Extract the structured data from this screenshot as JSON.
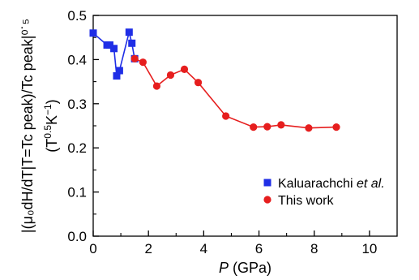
{
  "chart_data": {
    "type": "scatter",
    "title": "",
    "xlabel": {
      "var": "P",
      "unit": " (GPa)"
    },
    "ylabel": {
      "line1": "|(μ₀dH/dT|T=Tc peak)/Tc peak|⁰˙⁵",
      "line2_parts": [
        "(T",
        "0.5",
        "K",
        "−1",
        ")"
      ]
    },
    "xlim": [
      0,
      11
    ],
    "ylim": [
      0,
      0.5
    ],
    "xticks": [
      0,
      2,
      4,
      6,
      8,
      10
    ],
    "yticks": [
      0.0,
      0.1,
      0.2,
      0.3,
      0.4,
      0.5
    ],
    "grid": false,
    "legend_position": "bottom-right",
    "series": [
      {
        "name": {
          "prefix": "Kaluarachchi ",
          "italic": "et al."
        },
        "marker": "square",
        "color": "#1f2ee6",
        "x": [
          0.0,
          0.5,
          0.6,
          0.75,
          0.85,
          0.95,
          1.3,
          1.4,
          1.5
        ],
        "y": [
          0.46,
          0.433,
          0.433,
          0.425,
          0.363,
          0.375,
          0.462,
          0.437,
          0.402
        ]
      },
      {
        "name": {
          "prefix": "This work",
          "italic": ""
        },
        "marker": "circle",
        "color": "#e61e1e",
        "x": [
          1.5,
          1.8,
          2.3,
          2.8,
          3.3,
          3.8,
          4.8,
          5.8,
          6.3,
          6.8,
          7.8,
          8.8
        ],
        "y": [
          0.402,
          0.394,
          0.34,
          0.365,
          0.378,
          0.348,
          0.272,
          0.247,
          0.248,
          0.252,
          0.245,
          0.247
        ]
      }
    ]
  }
}
